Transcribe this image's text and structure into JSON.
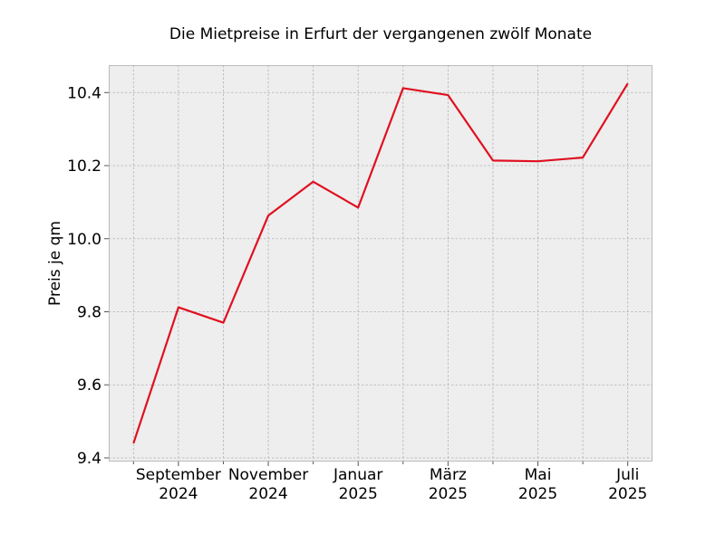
{
  "chart_data": {
    "type": "line",
    "title": "Die Mietpreise in Erfurt der vergangenen zwölf Monate",
    "xlabel": "",
    "ylabel": "Preis je qm",
    "x": [
      "2024-08",
      "2024-09",
      "2024-10",
      "2024-11",
      "2024-12",
      "2025-01",
      "2025-02",
      "2025-03",
      "2025-04",
      "2025-05",
      "2025-06",
      "2025-07"
    ],
    "series": [
      {
        "values": [
          9.44,
          9.812,
          9.77,
          10.063,
          10.156,
          10.085,
          10.412,
          10.393,
          10.214,
          10.212,
          10.222,
          10.425
        ]
      }
    ],
    "ylim": [
      9.39,
      10.475
    ],
    "yticks": [
      9.4,
      9.6,
      9.8,
      10.0,
      10.2,
      10.4
    ],
    "ytick_labels": [
      "9.4",
      "9.6",
      "9.8",
      "10.0",
      "10.2",
      "10.4"
    ],
    "xticks": [
      {
        "index": 1,
        "line1": "September",
        "line2": "2024"
      },
      {
        "index": 3,
        "line1": "November",
        "line2": "2024"
      },
      {
        "index": 5,
        "line1": "Januar",
        "line2": "2025"
      },
      {
        "index": 7,
        "line1": "März",
        "line2": "2025"
      },
      {
        "index": 9,
        "line1": "Mai",
        "line2": "2025"
      },
      {
        "index": 11,
        "line1": "Juli",
        "line2": "2025"
      }
    ],
    "grid": true,
    "line_color": "#e01020",
    "background_color": "#eeeeee"
  }
}
